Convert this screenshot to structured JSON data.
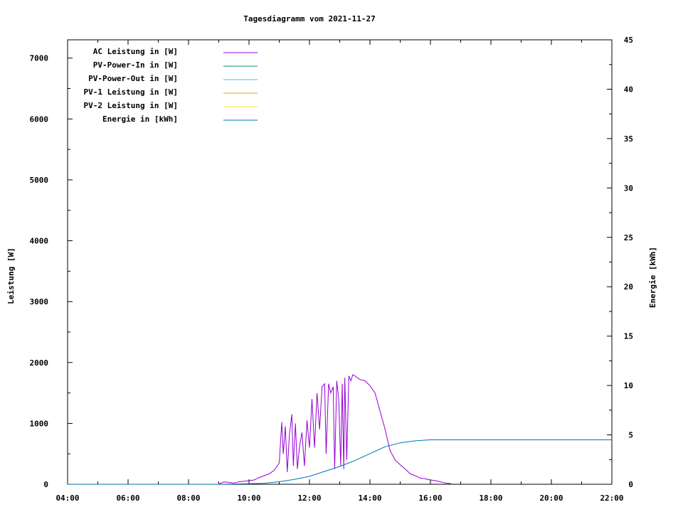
{
  "chart_data": {
    "type": "line",
    "title": "Tagesdiagramm vom 2021-11-27",
    "ylabel": "Leistung [W]",
    "y2label": "Energie [kWh]",
    "xlabel": "",
    "xlim": [
      "04:00",
      "22:00"
    ],
    "ylim": [
      0,
      7300
    ],
    "y2lim": [
      0,
      45
    ],
    "grid": false,
    "legend_position": "top-left",
    "x_ticks": [
      "04:00",
      "06:00",
      "08:00",
      "10:00",
      "12:00",
      "14:00",
      "16:00",
      "18:00",
      "20:00",
      "22:00"
    ],
    "y_ticks": [
      "0",
      "1000",
      "2000",
      "3000",
      "4000",
      "5000",
      "6000",
      "7000"
    ],
    "y2_ticks": [
      "0",
      "5",
      "10",
      "15",
      "20",
      "25",
      "30",
      "35",
      "40",
      "45"
    ],
    "series": [
      {
        "name": "AC Leistung in [W]",
        "color": "#9400d3",
        "axis": "y",
        "points": [
          [
            "09:00",
            0
          ],
          [
            "09:10",
            40
          ],
          [
            "09:20",
            30
          ],
          [
            "09:30",
            20
          ],
          [
            "09:40",
            40
          ],
          [
            "09:50",
            50
          ],
          [
            "10:00",
            60
          ],
          [
            "10:10",
            70
          ],
          [
            "10:20",
            110
          ],
          [
            "10:30",
            140
          ],
          [
            "10:40",
            170
          ],
          [
            "10:50",
            230
          ],
          [
            "11:00",
            350
          ],
          [
            "11:05",
            1020
          ],
          [
            "11:08",
            500
          ],
          [
            "11:12",
            950
          ],
          [
            "11:16",
            200
          ],
          [
            "11:20",
            800
          ],
          [
            "11:25",
            1150
          ],
          [
            "11:28",
            300
          ],
          [
            "11:32",
            1000
          ],
          [
            "11:36",
            250
          ],
          [
            "11:40",
            600
          ],
          [
            "11:45",
            850
          ],
          [
            "11:50",
            300
          ],
          [
            "11:55",
            1050
          ],
          [
            "12:00",
            600
          ],
          [
            "12:05",
            1400
          ],
          [
            "12:10",
            600
          ],
          [
            "12:15",
            1500
          ],
          [
            "12:20",
            900
          ],
          [
            "12:25",
            1600
          ],
          [
            "12:30",
            1650
          ],
          [
            "12:33",
            500
          ],
          [
            "12:38",
            1650
          ],
          [
            "12:42",
            1500
          ],
          [
            "12:47",
            1600
          ],
          [
            "12:50",
            250
          ],
          [
            "12:54",
            1700
          ],
          [
            "12:58",
            1400
          ],
          [
            "13:02",
            300
          ],
          [
            "13:05",
            1650
          ],
          [
            "13:08",
            250
          ],
          [
            "13:10",
            1750
          ],
          [
            "13:14",
            400
          ],
          [
            "13:18",
            1780
          ],
          [
            "13:22",
            1700
          ],
          [
            "13:26",
            1800
          ],
          [
            "13:30",
            1780
          ],
          [
            "13:40",
            1720
          ],
          [
            "13:50",
            1700
          ],
          [
            "14:00",
            1620
          ],
          [
            "14:10",
            1500
          ],
          [
            "14:20",
            1200
          ],
          [
            "14:30",
            900
          ],
          [
            "14:40",
            550
          ],
          [
            "14:50",
            400
          ],
          [
            "15:00",
            320
          ],
          [
            "15:10",
            250
          ],
          [
            "15:20",
            170
          ],
          [
            "15:30",
            140
          ],
          [
            "15:40",
            100
          ],
          [
            "15:50",
            90
          ],
          [
            "16:00",
            70
          ],
          [
            "16:10",
            60
          ],
          [
            "16:20",
            40
          ],
          [
            "16:30",
            20
          ],
          [
            "16:40",
            10
          ],
          [
            "16:43",
            0
          ]
        ]
      },
      {
        "name": "PV-Power-In in [W]",
        "color": "#009e73",
        "axis": "y",
        "points": []
      },
      {
        "name": "PV-Power-Out in [W]",
        "color": "#56b4e9",
        "axis": "y",
        "points": []
      },
      {
        "name": "PV-1 Leistung in [W]",
        "color": "#e69f00",
        "axis": "y",
        "points": []
      },
      {
        "name": "PV-2 Leistung in [W]",
        "color": "#f0e442",
        "axis": "y",
        "points": []
      },
      {
        "name": "Energie in [kWh]",
        "color": "#0072b2",
        "axis": "y2",
        "points": [
          [
            "04:00",
            0
          ],
          [
            "09:00",
            0
          ],
          [
            "10:00",
            0.05
          ],
          [
            "10:30",
            0.1
          ],
          [
            "11:00",
            0.25
          ],
          [
            "11:30",
            0.5
          ],
          [
            "12:00",
            0.8
          ],
          [
            "12:30",
            1.3
          ],
          [
            "13:00",
            1.8
          ],
          [
            "13:30",
            2.4
          ],
          [
            "14:00",
            3.1
          ],
          [
            "14:30",
            3.8
          ],
          [
            "15:00",
            4.2
          ],
          [
            "15:30",
            4.4
          ],
          [
            "16:00",
            4.5
          ],
          [
            "17:00",
            4.5
          ],
          [
            "22:00",
            4.5
          ]
        ]
      }
    ]
  }
}
